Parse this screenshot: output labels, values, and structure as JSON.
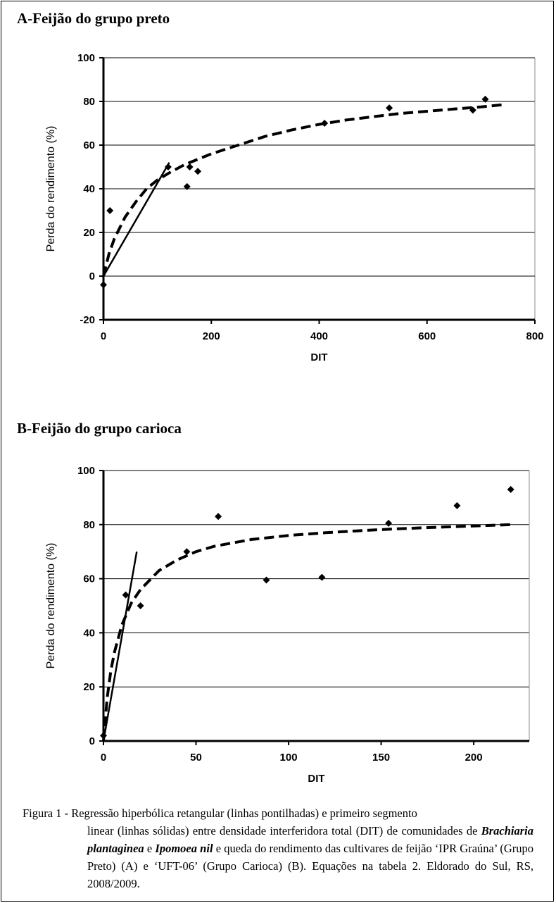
{
  "chart_data": [
    {
      "type": "scatter",
      "title": "A-Feijão do grupo preto",
      "xlabel": "DIT",
      "ylabel": "Perda do rendimento (%)",
      "xlim": [
        0,
        800
      ],
      "ylim": [
        -20,
        100
      ],
      "xticks": [
        0,
        200,
        400,
        600,
        800
      ],
      "yticks": [
        -20,
        0,
        20,
        40,
        60,
        80,
        100
      ],
      "grid": "horizontal",
      "points": [
        {
          "x": 0,
          "y": -4
        },
        {
          "x": 12,
          "y": 30
        },
        {
          "x": 120,
          "y": 50
        },
        {
          "x": 155,
          "y": 41
        },
        {
          "x": 160,
          "y": 50
        },
        {
          "x": 175,
          "y": 48
        },
        {
          "x": 410,
          "y": 70
        },
        {
          "x": 530,
          "y": 77
        },
        {
          "x": 685,
          "y": 76
        },
        {
          "x": 708,
          "y": 81
        }
      ],
      "series": [
        {
          "style": "dashed",
          "x": [
            0,
            10,
            20,
            40,
            60,
            80,
            100,
            120,
            150,
            200,
            250,
            300,
            350,
            400,
            450,
            500,
            550,
            600,
            650,
            700,
            740
          ],
          "y": [
            0,
            10,
            17,
            27,
            34,
            40,
            44,
            47,
            51,
            56,
            60,
            64,
            67,
            69.5,
            71.5,
            73,
            74.5,
            75.5,
            76.5,
            77.5,
            78.5
          ]
        },
        {
          "style": "solid",
          "x": [
            0,
            122
          ],
          "y": [
            0,
            52
          ]
        }
      ]
    },
    {
      "type": "scatter",
      "title": "B-Feijão do grupo carioca",
      "xlabel": "DIT",
      "ylabel": "Perda do rendimento (%)",
      "xlim": [
        0,
        230
      ],
      "ylim": [
        0,
        100
      ],
      "xticks": [
        0,
        50,
        100,
        150,
        200
      ],
      "yticks": [
        0,
        20,
        40,
        60,
        80,
        100
      ],
      "grid": "horizontal",
      "points": [
        {
          "x": 0,
          "y": 2
        },
        {
          "x": 12,
          "y": 54
        },
        {
          "x": 20,
          "y": 50
        },
        {
          "x": 45,
          "y": 70
        },
        {
          "x": 62,
          "y": 83
        },
        {
          "x": 88,
          "y": 59.5
        },
        {
          "x": 118,
          "y": 60.5
        },
        {
          "x": 154,
          "y": 80.5
        },
        {
          "x": 191,
          "y": 87
        },
        {
          "x": 220,
          "y": 93
        }
      ],
      "series": [
        {
          "style": "dashed",
          "x": [
            0,
            2,
            4,
            6,
            8,
            10,
            15,
            20,
            30,
            40,
            50,
            60,
            80,
            100,
            120,
            140,
            160,
            180,
            200,
            220
          ],
          "y": [
            0,
            16,
            26,
            33,
            38,
            43,
            51,
            56,
            63,
            67,
            70,
            72,
            74.5,
            76,
            77,
            77.8,
            78.5,
            79,
            79.5,
            80
          ]
        },
        {
          "style": "solid",
          "x": [
            0,
            18
          ],
          "y": [
            0,
            70
          ]
        }
      ]
    }
  ],
  "caption": {
    "lead": "Figura 1 - Regressão hiperbólica retangular (linhas pontilhadas) e primeiro segmento",
    "rest_1": "linear (linhas sólidas) entre densidade interferidora total (DIT) de comunidades de ",
    "species_1": "Brachiaria plantaginea",
    "conj": " e ",
    "species_2": "Ipomoea nil",
    "rest_2": " e queda do rendimento das cultivares de feijão ‘IPR Graúna’ (Grupo Preto) (A) e ‘UFT-06’ (Grupo Carioca) (B). Equações na tabela 2. Eldorado do Sul, RS, 2008/2009."
  }
}
